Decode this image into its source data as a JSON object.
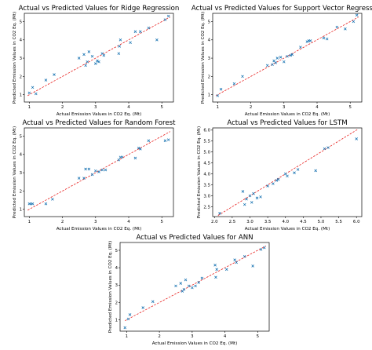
{
  "chart_data": [
    {
      "type": "scatter",
      "title": "Actual vs Predicted Values for Ridge Regression",
      "xlabel": "Actual Emission Values in CO2 Eq. (Mt)",
      "ylabel": "Predicted Emission Values in CO2 Eq. (Mt)",
      "xlim": [
        0.85,
        5.35
      ],
      "ylim": [
        0.6,
        5.45
      ],
      "xticks": [
        1,
        2,
        3,
        4,
        5
      ],
      "yticks": [
        1,
        2,
        3,
        4,
        5
      ],
      "x": [
        1.0,
        1.1,
        1.2,
        1.5,
        1.75,
        2.5,
        2.65,
        2.7,
        2.75,
        2.8,
        2.9,
        3.0,
        3.05,
        3.1,
        3.2,
        3.25,
        3.7,
        3.72,
        3.75,
        4.05,
        4.2,
        4.35,
        4.6,
        4.85,
        5.1,
        5.2
      ],
      "y": [
        1.1,
        1.4,
        1.05,
        1.8,
        2.1,
        3.0,
        3.2,
        2.6,
        2.8,
        3.35,
        3.1,
        2.7,
        2.85,
        2.8,
        3.25,
        3.15,
        3.25,
        3.65,
        4.0,
        3.85,
        4.45,
        4.45,
        4.65,
        4.0,
        5.1,
        5.3
      ],
      "fit_line": {
        "x": [
          0.95,
          5.25
        ],
        "y": [
          0.95,
          5.25
        ]
      },
      "colors": {
        "marker": "#1f77b4",
        "line": "#e8211f"
      },
      "grid": false
    },
    {
      "type": "scatter",
      "title": "Actual vs Predicted Values for Support Vector Regression",
      "xlabel": "Actual Emission Values in CO2 Eq. (Mt)",
      "ylabel": "Predicted Emission Values in CO2 Eq. (Mt)",
      "xlim": [
        0.85,
        5.35
      ],
      "ylim": [
        0.6,
        5.45
      ],
      "xticks": [
        1,
        2,
        3,
        4,
        5
      ],
      "yticks": [
        1,
        2,
        3,
        4,
        5
      ],
      "x": [
        1.0,
        1.1,
        1.5,
        1.75,
        2.5,
        2.65,
        2.7,
        2.75,
        2.8,
        2.9,
        3.0,
        3.1,
        3.2,
        3.25,
        3.5,
        3.7,
        3.75,
        3.8,
        4.2,
        4.3,
        4.6,
        4.85,
        5.1,
        5.2
      ],
      "y": [
        0.95,
        1.3,
        1.6,
        2.0,
        2.6,
        2.65,
        2.85,
        2.75,
        3.0,
        3.05,
        2.8,
        3.1,
        3.15,
        3.2,
        3.6,
        3.9,
        3.95,
        3.95,
        4.1,
        4.05,
        4.7,
        4.6,
        5.0,
        5.35
      ],
      "fit_line": {
        "x": [
          0.95,
          5.25
        ],
        "y": [
          0.95,
          5.25
        ]
      },
      "colors": {
        "marker": "#1f77b4",
        "line": "#e8211f"
      },
      "grid": false
    },
    {
      "type": "scatter",
      "title": "Actual vs Predicted Values for Random Forest",
      "xlabel": "Actual Emission Values in CO2 Eq. (Mt)",
      "ylabel": "Predicted Emission Values in CO2 Eq. (Mt)",
      "xlim": [
        0.85,
        5.35
      ],
      "ylim": [
        0.6,
        5.45
      ],
      "xticks": [
        1,
        2,
        3,
        4,
        5
      ],
      "yticks": [
        1,
        2,
        3,
        4,
        5
      ],
      "x": [
        1.0,
        1.05,
        1.1,
        1.5,
        1.7,
        2.5,
        2.65,
        2.7,
        2.8,
        2.9,
        3.0,
        3.1,
        3.2,
        3.3,
        3.7,
        3.75,
        3.8,
        4.2,
        4.3,
        4.35,
        4.6,
        5.1,
        5.2
      ],
      "y": [
        1.3,
        1.3,
        1.3,
        1.3,
        1.55,
        2.7,
        2.7,
        3.2,
        3.2,
        2.9,
        3.1,
        3.05,
        3.15,
        3.15,
        3.7,
        3.85,
        3.85,
        3.8,
        4.35,
        4.3,
        4.75,
        4.75,
        4.8
      ],
      "fit_line": {
        "x": [
          0.95,
          5.25
        ],
        "y": [
          0.95,
          5.25
        ]
      },
      "colors": {
        "marker": "#1f77b4",
        "line": "#e8211f"
      },
      "grid": false
    },
    {
      "type": "scatter",
      "title": "Actual vs Predicted Values for LSTM",
      "xlabel": "Actual Emission Values in CO2 Eq. (Mt)",
      "ylabel": "Predicted Emission Values in CO2 Eq. (Mt)",
      "xlim": [
        1.95,
        6.15
      ],
      "ylim": [
        2.05,
        6.1
      ],
      "xticks": [
        2.0,
        2.5,
        3.0,
        3.5,
        4.0,
        4.5,
        5.0,
        5.5,
        6.0
      ],
      "xtick_labels": [
        "2.0",
        "2.5",
        "3.0",
        "3.5",
        "4.0",
        "4.5",
        "5.0",
        "5.5",
        "6.0"
      ],
      "yticks": [
        2.5,
        3.0,
        3.5,
        4.0,
        4.5,
        5.0,
        5.5,
        6.0
      ],
      "ytick_labels": [
        "2.5",
        "3.0",
        "3.5",
        "4.0",
        "4.5",
        "5.0",
        "5.5",
        "6.0"
      ],
      "x": [
        2.15,
        2.8,
        2.85,
        2.9,
        3.0,
        3.05,
        3.1,
        3.2,
        3.3,
        3.5,
        3.65,
        3.75,
        3.8,
        4.0,
        4.05,
        4.25,
        4.35,
        4.85,
        5.1,
        5.2,
        6.0
      ],
      "y": [
        2.2,
        3.2,
        2.6,
        2.85,
        3.0,
        2.7,
        3.1,
        2.9,
        2.95,
        3.45,
        3.55,
        3.7,
        3.75,
        4.0,
        3.9,
        4.05,
        4.2,
        4.15,
        5.15,
        5.2,
        5.6
      ],
      "fit_line": {
        "x": [
          2.1,
          6.05
        ],
        "y": [
          2.1,
          6.05
        ]
      },
      "colors": {
        "marker": "#1f77b4",
        "line": "#e8211f"
      },
      "grid": false
    },
    {
      "type": "scatter",
      "title": "Actual vs Predicted Values for ANN",
      "xlabel": "Actual Emission Values in CO2 Eq. (Mt)",
      "ylabel": "Predicted Emission Values in CO2 Eq. (Mt)",
      "xlim": [
        0.8,
        5.35
      ],
      "ylim": [
        0.35,
        5.45
      ],
      "xticks": [
        1,
        2,
        3,
        4,
        5
      ],
      "yticks": [
        1,
        2,
        3,
        4,
        5
      ],
      "x": [
        0.95,
        1.05,
        1.1,
        1.5,
        1.8,
        2.5,
        2.65,
        2.7,
        2.75,
        2.8,
        2.9,
        3.0,
        3.1,
        3.2,
        3.3,
        3.7,
        3.72,
        3.75,
        4.05,
        4.3,
        4.35,
        4.6,
        4.85,
        5.1,
        5.2
      ],
      "y": [
        0.55,
        1.05,
        1.3,
        1.7,
        2.05,
        2.95,
        3.1,
        2.65,
        2.75,
        3.3,
        2.95,
        2.85,
        2.95,
        3.15,
        3.4,
        4.15,
        3.45,
        3.9,
        3.9,
        4.45,
        4.3,
        4.65,
        4.1,
        5.05,
        5.15
      ],
      "fit_line": {
        "x": [
          0.95,
          5.25
        ],
        "y": [
          0.95,
          5.25
        ]
      },
      "colors": {
        "marker": "#1f77b4",
        "line": "#e8211f"
      },
      "grid": false
    }
  ]
}
